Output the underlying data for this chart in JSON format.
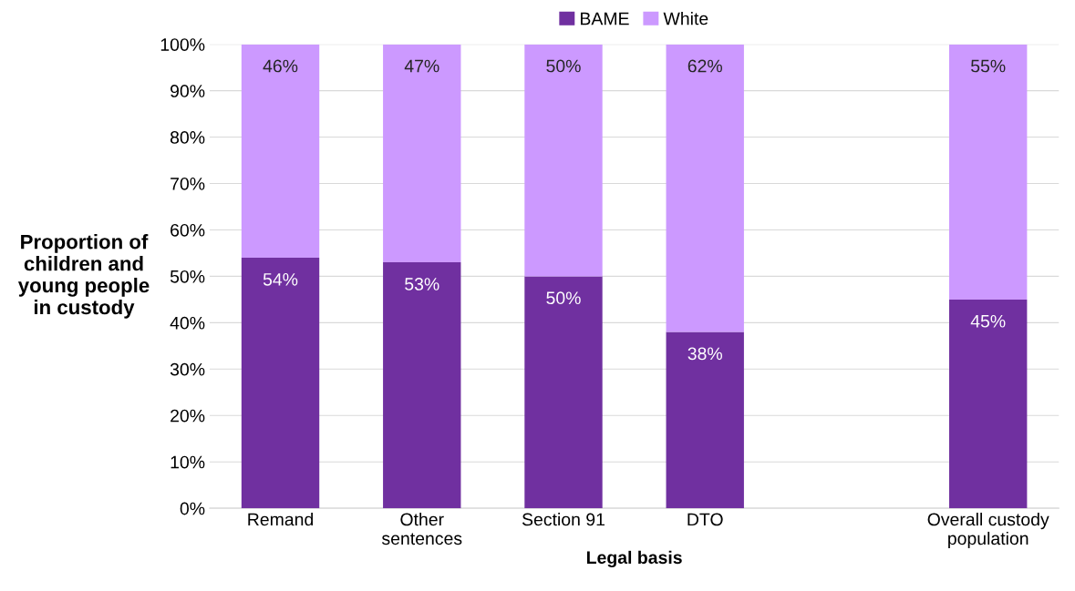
{
  "chart_data": {
    "type": "bar",
    "stacked": true,
    "xlabel": "Legal basis",
    "ylabel": "Proportion of\nchildren and\nyoung people\nin custody",
    "categories": [
      "Remand",
      "Other\nsentences",
      "Section 91",
      "DTO",
      null,
      "Overall custody\npopulation"
    ],
    "series": [
      {
        "name": "BAME",
        "color": "#7030a0",
        "values": [
          54,
          53,
          50,
          38,
          null,
          45
        ],
        "value_labels": [
          "54%",
          "53%",
          "50%",
          "38%",
          null,
          "45%"
        ]
      },
      {
        "name": "White",
        "color": "#cc99ff",
        "values": [
          46,
          47,
          50,
          62,
          null,
          55
        ],
        "value_labels": [
          "46%",
          "47%",
          "50%",
          "62%",
          null,
          "55%"
        ]
      }
    ],
    "ylim": [
      0,
      100
    ],
    "yticks": [
      {
        "value": 0,
        "label": "0%"
      },
      {
        "value": 10,
        "label": "10%"
      },
      {
        "value": 20,
        "label": "20%"
      },
      {
        "value": 30,
        "label": "30%"
      },
      {
        "value": 40,
        "label": "40%"
      },
      {
        "value": 50,
        "label": "50%"
      },
      {
        "value": 60,
        "label": "60%"
      },
      {
        "value": 70,
        "label": "70%"
      },
      {
        "value": 80,
        "label": "80%"
      },
      {
        "value": 90,
        "label": "90%"
      },
      {
        "value": 100,
        "label": "100%"
      }
    ],
    "grid": "y",
    "legend": "top"
  }
}
